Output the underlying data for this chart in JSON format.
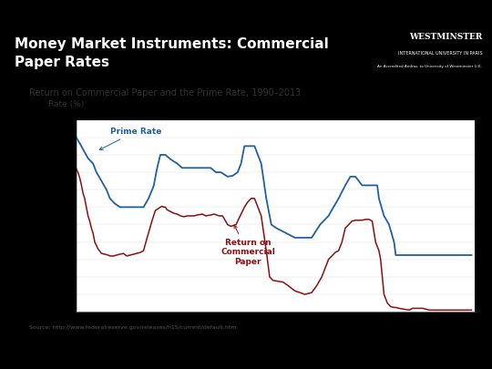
{
  "title_main": "Money Market Instruments: Commercial\nPaper Rates",
  "subtitle": "Return on Commercial Paper and the Prime Rate, 1990–2013",
  "ylabel": "Rate (%)",
  "source": "Source: http://www.federalreserve.gov/releases/h15/current/default.htm",
  "header_bg": "#1a8ac4",
  "header_text_color": "#ffffff",
  "plot_bg": "#ffffff",
  "outer_bg": "#ffffff",
  "black_bar": "#000000",
  "bottom_bar": "#1a8ac4",
  "prime_color": "#2060a0",
  "cp_color": "#8b1010",
  "prime_label": "Prime Rate",
  "cp_label": "Return on\nCommercial\nPaper",
  "ylim": [
    0,
    11
  ],
  "yticks": [
    0,
    1,
    2,
    3,
    4,
    5,
    6,
    7,
    8,
    9,
    10,
    11
  ],
  "xticks": [
    1991,
    1993,
    1995,
    1997,
    1999,
    2001,
    2003,
    2005,
    2007,
    2009,
    2011,
    2013
  ],
  "prime_rate_years": [
    1990.0,
    1990.3,
    1990.7,
    1991.0,
    1991.2,
    1991.5,
    1991.8,
    1992.0,
    1992.3,
    1992.6,
    1993.0,
    1993.5,
    1994.0,
    1994.3,
    1994.6,
    1994.8,
    1995.0,
    1995.3,
    1995.6,
    1996.0,
    1996.3,
    1996.6,
    1997.0,
    1997.3,
    1997.6,
    1998.0,
    1998.3,
    1998.6,
    1999.0,
    1999.3,
    1999.6,
    1999.8,
    2000.0,
    2000.3,
    2000.6,
    2001.0,
    2001.3,
    2001.6,
    2001.9,
    2002.0,
    2002.5,
    2003.0,
    2003.5,
    2004.0,
    2004.5,
    2005.0,
    2005.3,
    2005.6,
    2006.0,
    2006.3,
    2006.6,
    2007.0,
    2007.3,
    2007.6,
    2007.9,
    2008.0,
    2008.3,
    2008.6,
    2008.9,
    2009.0,
    2009.5,
    2010.0,
    2010.5,
    2011.0,
    2011.5,
    2012.0,
    2012.5,
    2013.0,
    2013.5
  ],
  "prime_rate_vals": [
    10.0,
    9.5,
    8.8,
    8.5,
    8.0,
    7.5,
    7.0,
    6.5,
    6.2,
    6.0,
    6.0,
    6.0,
    6.0,
    6.5,
    7.2,
    8.2,
    9.0,
    9.0,
    8.75,
    8.5,
    8.25,
    8.25,
    8.25,
    8.25,
    8.25,
    8.25,
    8.0,
    8.0,
    7.75,
    7.8,
    8.0,
    8.5,
    9.5,
    9.5,
    9.5,
    8.5,
    6.5,
    5.0,
    4.8,
    4.75,
    4.5,
    4.25,
    4.25,
    4.25,
    5.0,
    5.5,
    6.0,
    6.5,
    7.25,
    7.75,
    7.75,
    7.25,
    7.25,
    7.25,
    7.25,
    6.5,
    5.5,
    5.0,
    4.0,
    3.25,
    3.25,
    3.25,
    3.25,
    3.25,
    3.25,
    3.25,
    3.25,
    3.25,
    3.25
  ],
  "cp_rate_years": [
    1990.0,
    1990.1,
    1990.2,
    1990.3,
    1990.4,
    1990.5,
    1990.6,
    1990.7,
    1990.8,
    1990.9,
    1991.0,
    1991.1,
    1991.2,
    1991.3,
    1991.5,
    1991.7,
    1991.9,
    1992.0,
    1992.2,
    1992.4,
    1992.6,
    1992.8,
    1993.0,
    1993.2,
    1993.4,
    1993.6,
    1993.8,
    1994.0,
    1994.2,
    1994.5,
    1994.7,
    1995.0,
    1995.1,
    1995.2,
    1995.3,
    1995.4,
    1995.5,
    1995.6,
    1995.7,
    1995.8,
    1996.0,
    1996.2,
    1996.4,
    1996.6,
    1996.8,
    1997.0,
    1997.2,
    1997.5,
    1997.7,
    1998.0,
    1998.2,
    1998.5,
    1998.7,
    1999.0,
    1999.2,
    1999.5,
    1999.7,
    2000.0,
    2000.2,
    2000.4,
    2000.6,
    2001.0,
    2001.3,
    2001.5,
    2001.7,
    2002.0,
    2002.3,
    2002.6,
    2003.0,
    2003.3,
    2003.6,
    2004.0,
    2004.3,
    2004.6,
    2005.0,
    2005.2,
    2005.4,
    2005.6,
    2005.8,
    2006.0,
    2006.2,
    2006.4,
    2006.6,
    2006.8,
    2007.0,
    2007.2,
    2007.4,
    2007.6,
    2007.8,
    2008.0,
    2008.1,
    2008.2,
    2008.3,
    2008.5,
    2008.7,
    2008.9,
    2009.0,
    2009.2,
    2009.5,
    2009.8,
    2010.0,
    2010.3,
    2010.6,
    2011.0,
    2011.3,
    2011.6,
    2012.0,
    2012.3,
    2012.6,
    2013.0,
    2013.3,
    2013.5
  ],
  "cp_rate_vals": [
    8.2,
    8.0,
    7.7,
    7.3,
    6.8,
    6.5,
    6.0,
    5.5,
    5.2,
    4.8,
    4.5,
    4.0,
    3.8,
    3.6,
    3.35,
    3.3,
    3.25,
    3.2,
    3.2,
    3.25,
    3.3,
    3.35,
    3.2,
    3.25,
    3.3,
    3.35,
    3.4,
    3.5,
    4.2,
    5.2,
    5.8,
    6.0,
    6.05,
    6.0,
    6.0,
    5.85,
    5.8,
    5.75,
    5.7,
    5.65,
    5.6,
    5.5,
    5.45,
    5.5,
    5.5,
    5.5,
    5.55,
    5.6,
    5.5,
    5.55,
    5.6,
    5.5,
    5.5,
    5.0,
    4.9,
    5.0,
    5.4,
    6.0,
    6.3,
    6.5,
    6.5,
    5.5,
    3.5,
    2.0,
    1.8,
    1.75,
    1.7,
    1.5,
    1.2,
    1.1,
    1.0,
    1.1,
    1.5,
    2.0,
    3.0,
    3.2,
    3.4,
    3.5,
    4.0,
    4.8,
    5.0,
    5.2,
    5.25,
    5.25,
    5.25,
    5.3,
    5.3,
    5.2,
    4.0,
    3.5,
    3.0,
    2.0,
    1.0,
    0.5,
    0.3,
    0.25,
    0.25,
    0.2,
    0.15,
    0.1,
    0.2,
    0.2,
    0.2,
    0.1,
    0.1,
    0.1,
    0.1,
    0.1,
    0.1,
    0.1,
    0.1,
    0.1
  ]
}
